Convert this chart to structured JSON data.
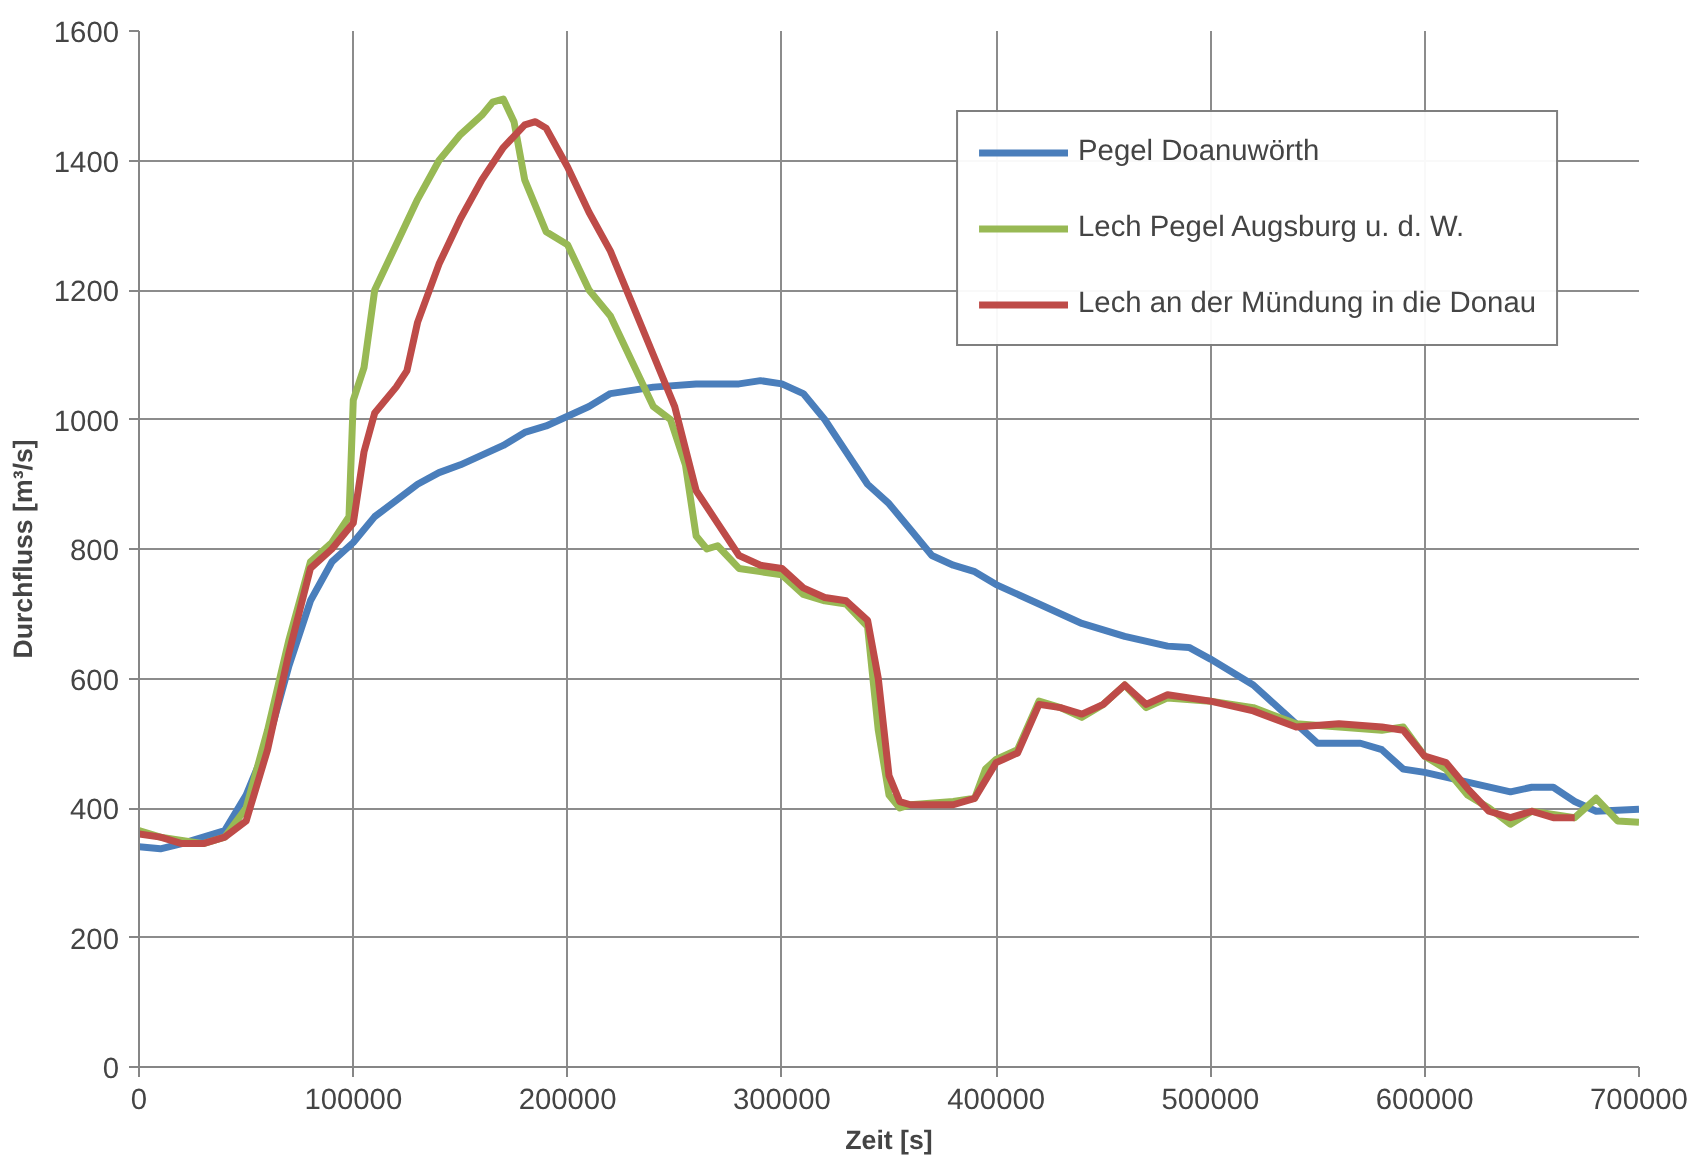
{
  "chart_data": {
    "type": "line",
    "xlabel": "Zeit [s]",
    "ylabel": "Durchfluss [m³/s]",
    "xlim": [
      0,
      700000
    ],
    "xticks": [
      0,
      100000,
      200000,
      300000,
      400000,
      500000,
      600000,
      700000
    ],
    "ylim": [
      0,
      1600
    ],
    "yticks": [
      0,
      200,
      400,
      600,
      800,
      1000,
      1200,
      1400,
      1600
    ],
    "grid": true,
    "legend": "top right",
    "marker": "none",
    "line_style": "solid",
    "series": [
      {
        "name": "Pegel Doanuwörth",
        "color": "#4a7ebb",
        "x": [
          0,
          10000,
          20000,
          30000,
          40000,
          50000,
          60000,
          70000,
          80000,
          90000,
          100000,
          110000,
          120000,
          130000,
          140000,
          150000,
          160000,
          170000,
          180000,
          190000,
          200000,
          210000,
          220000,
          240000,
          260000,
          280000,
          290000,
          300000,
          310000,
          320000,
          330000,
          340000,
          350000,
          360000,
          370000,
          380000,
          390000,
          400000,
          420000,
          440000,
          460000,
          480000,
          490000,
          500000,
          520000,
          540000,
          550000,
          560000,
          570000,
          580000,
          590000,
          600000,
          620000,
          640000,
          650000,
          660000,
          670000,
          680000,
          700000
        ],
        "values": [
          340,
          337,
          345,
          355,
          365,
          420,
          500,
          620,
          720,
          780,
          810,
          850,
          875,
          900,
          918,
          930,
          945,
          960,
          980,
          990,
          1005,
          1020,
          1040,
          1050,
          1055,
          1055,
          1060,
          1055,
          1040,
          1000,
          950,
          900,
          870,
          830,
          790,
          775,
          765,
          745,
          715,
          685,
          665,
          650,
          648,
          630,
          590,
          530,
          500,
          500,
          500,
          490,
          460,
          455,
          440,
          425,
          432,
          432,
          410,
          395,
          398
        ]
      },
      {
        "name": "Lech Pegel Augsburg u. d. W.",
        "color": "#98b954",
        "x": [
          0,
          10000,
          20000,
          30000,
          40000,
          50000,
          60000,
          70000,
          80000,
          90000,
          98000,
          100000,
          105000,
          110000,
          120000,
          130000,
          140000,
          150000,
          160000,
          165000,
          170000,
          175000,
          180000,
          190000,
          200000,
          210000,
          220000,
          230000,
          240000,
          248000,
          255000,
          260000,
          265000,
          270000,
          280000,
          290000,
          300000,
          310000,
          320000,
          330000,
          340000,
          345000,
          350000,
          355000,
          360000,
          380000,
          390000,
          395000,
          400000,
          410000,
          420000,
          430000,
          440000,
          450000,
          460000,
          470000,
          480000,
          500000,
          520000,
          540000,
          560000,
          580000,
          590000,
          600000,
          610000,
          620000,
          630000,
          640000,
          650000,
          660000,
          670000,
          680000,
          690000,
          700000
        ],
        "values": [
          365,
          355,
          350,
          345,
          355,
          400,
          520,
          660,
          780,
          810,
          850,
          1030,
          1080,
          1200,
          1270,
          1340,
          1400,
          1440,
          1470,
          1490,
          1495,
          1460,
          1370,
          1290,
          1270,
          1200,
          1160,
          1090,
          1020,
          1000,
          930,
          820,
          800,
          805,
          770,
          765,
          760,
          730,
          720,
          715,
          680,
          520,
          420,
          400,
          405,
          410,
          415,
          460,
          475,
          490,
          565,
          555,
          540,
          560,
          590,
          555,
          570,
          565,
          555,
          530,
          525,
          520,
          525,
          480,
          460,
          420,
          400,
          375,
          395,
          390,
          385,
          415,
          380,
          378
        ]
      },
      {
        "name": "Lech an der Mündung in die Donau",
        "color": "#be4b48",
        "x": [
          0,
          10000,
          20000,
          30000,
          40000,
          50000,
          60000,
          70000,
          80000,
          90000,
          100000,
          105000,
          110000,
          120000,
          125000,
          130000,
          140000,
          150000,
          160000,
          170000,
          180000,
          185000,
          190000,
          200000,
          210000,
          220000,
          230000,
          240000,
          250000,
          260000,
          270000,
          280000,
          290000,
          300000,
          310000,
          320000,
          330000,
          340000,
          345000,
          350000,
          355000,
          360000,
          380000,
          390000,
          400000,
          410000,
          420000,
          430000,
          440000,
          450000,
          460000,
          470000,
          480000,
          500000,
          520000,
          540000,
          560000,
          580000,
          590000,
          600000,
          610000,
          620000,
          630000,
          640000,
          650000,
          660000,
          670000
        ],
        "values": [
          360,
          355,
          345,
          345,
          355,
          380,
          490,
          640,
          770,
          800,
          840,
          950,
          1010,
          1050,
          1075,
          1150,
          1240,
          1310,
          1370,
          1420,
          1455,
          1460,
          1450,
          1390,
          1320,
          1260,
          1180,
          1100,
          1020,
          890,
          840,
          790,
          775,
          770,
          740,
          725,
          720,
          690,
          600,
          450,
          410,
          405,
          405,
          415,
          470,
          485,
          560,
          555,
          545,
          560,
          590,
          560,
          575,
          565,
          550,
          525,
          530,
          525,
          520,
          480,
          470,
          430,
          395,
          385,
          395,
          385,
          385
        ]
      }
    ]
  }
}
